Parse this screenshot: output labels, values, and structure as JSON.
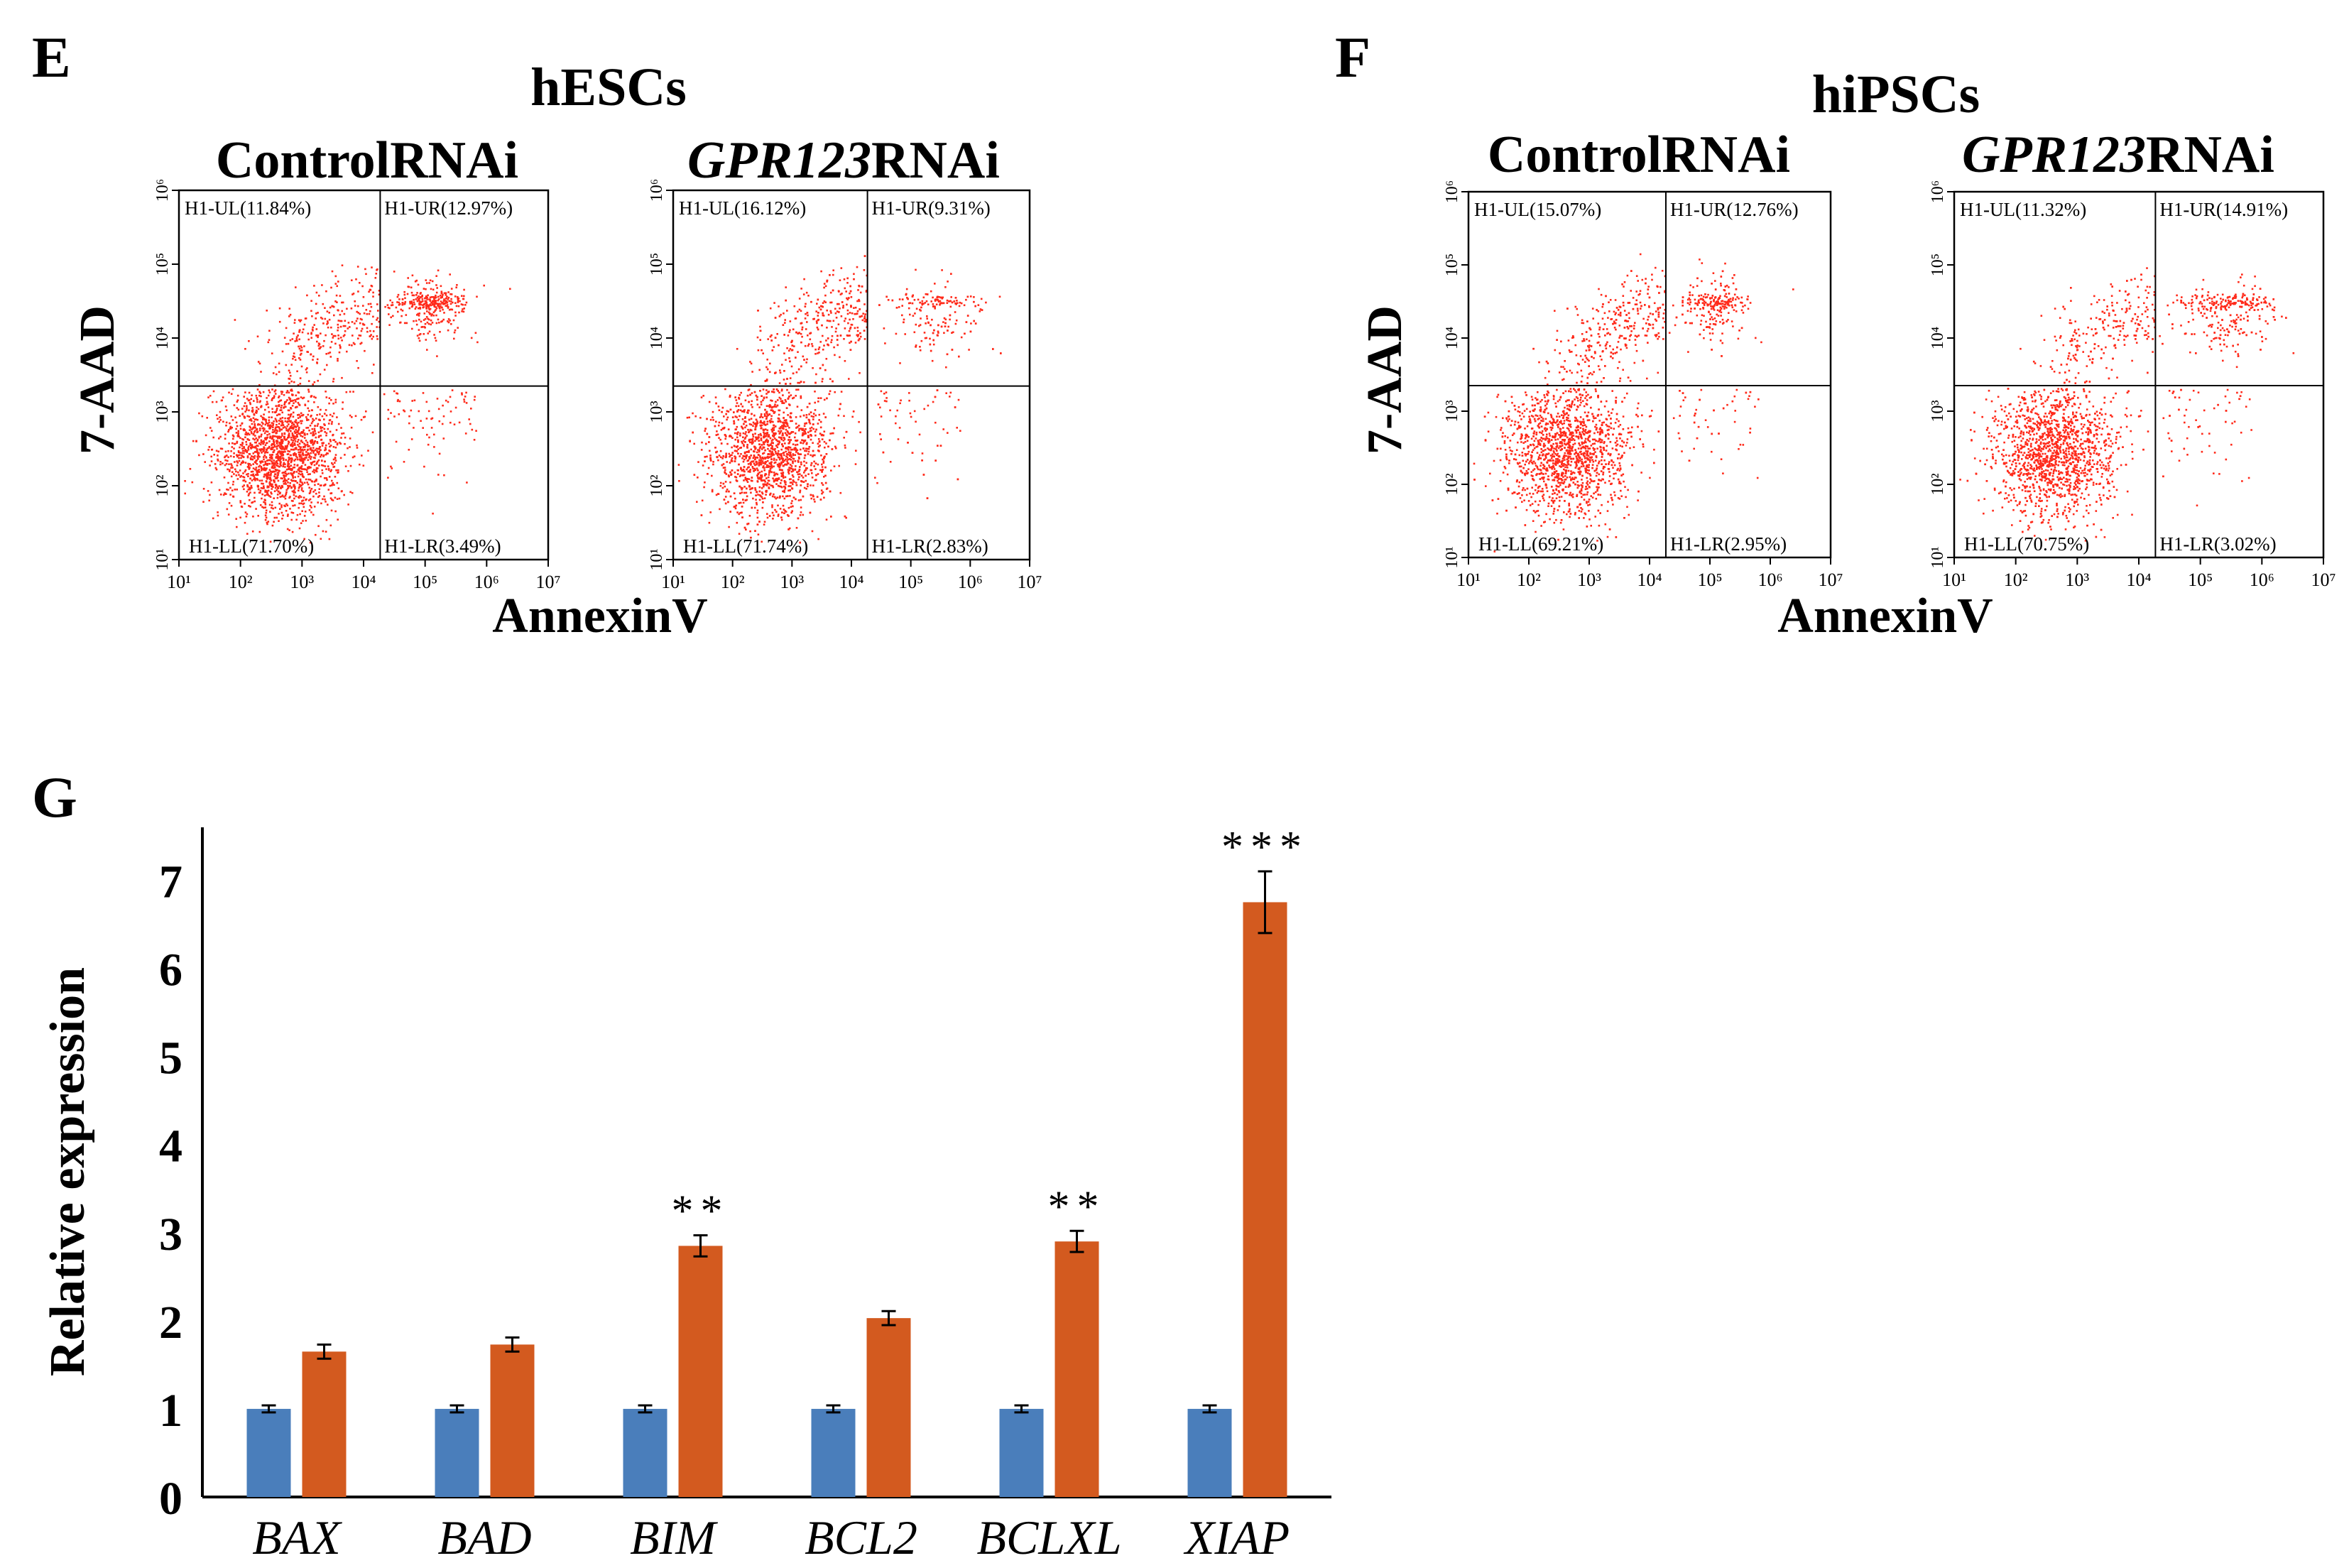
{
  "panels": {
    "E": {
      "letter": "E",
      "title": "hESCs",
      "xlabel": "AnnexinV",
      "ylabel": "7-AAD",
      "plots": [
        {
          "title_italic": "",
          "title_rest": "ControlRNAi",
          "quadrants": {
            "UL": "H1-UL(11.84%)",
            "UR": "H1-UR(12.97%)",
            "LL": "H1-LL(71.70%)",
            "LR": "H1-LR(3.49%)"
          },
          "fractions": {
            "UL": 0.1184,
            "UR": 0.1297,
            "LL": 0.717,
            "LR": 0.0349
          }
        },
        {
          "title_italic": "GPR123",
          "title_rest": "RNAi",
          "quadrants": {
            "UL": "H1-UL(16.12%)",
            "UR": "H1-UR(9.31%)",
            "LL": "H1-LL(71.74%)",
            "LR": "H1-LR(2.83%)"
          },
          "fractions": {
            "UL": 0.1612,
            "UR": 0.0931,
            "LL": 0.7174,
            "LR": 0.0283
          }
        }
      ]
    },
    "F": {
      "letter": "F",
      "title": "hiPSCs",
      "xlabel": "AnnexinV",
      "ylabel": "7-AAD",
      "plots": [
        {
          "title_italic": "",
          "title_rest": "ControlRNAi",
          "quadrants": {
            "UL": "H1-UL(15.07%)",
            "UR": "H1-UR(12.76%)",
            "LL": "H1-LL(69.21%)",
            "LR": "H1-LR(2.95%)"
          },
          "fractions": {
            "UL": 0.1507,
            "UR": 0.1276,
            "LL": 0.6921,
            "LR": 0.0295
          }
        },
        {
          "title_italic": "GPR123",
          "title_rest": "RNAi",
          "quadrants": {
            "UL": "H1-UL(11.32%)",
            "UR": "H1-UR(14.91%)",
            "LL": "H1-LL(70.75%)",
            "LR": "H1-LR(3.02%)"
          },
          "fractions": {
            "UL": 0.1132,
            "UR": 0.1491,
            "LL": 0.7075,
            "LR": 0.0302
          }
        }
      ]
    },
    "G": {
      "letter": "G"
    }
  },
  "flow_axis": {
    "x_ticks": [
      "10¹",
      "10²",
      "10³",
      "10⁴",
      "10⁵",
      "10⁶",
      "10⁷"
    ],
    "y_ticks": [
      "10¹",
      "10²",
      "10³",
      "10⁴",
      "10⁵",
      "10⁶"
    ],
    "dot_color": "#ff2a1a"
  },
  "chart_data": {
    "type": "bar",
    "categories": [
      "BAX",
      "BAD",
      "BIM",
      "BCL2",
      "BCLXL",
      "XIAP"
    ],
    "series": [
      {
        "values": [
          1,
          1,
          1,
          1,
          1,
          1
        ],
        "errors": [
          0.04,
          0.04,
          0.04,
          0.04,
          0.04,
          0.04
        ],
        "color": "#4a7ebb"
      },
      {
        "values": [
          1.65,
          1.73,
          2.85,
          2.03,
          2.9,
          6.75
        ],
        "errors": [
          0.08,
          0.08,
          0.12,
          0.08,
          0.12,
          0.35
        ],
        "color": "#d35a1f"
      }
    ],
    "significance": [
      "",
      "",
      "**",
      "",
      "**",
      "***"
    ],
    "ylabel": "Relative expression",
    "y_ticks": [
      "0",
      "1",
      "2",
      "3",
      "4",
      "5",
      "6",
      "7"
    ],
    "ylim": [
      0,
      7.6
    ]
  }
}
